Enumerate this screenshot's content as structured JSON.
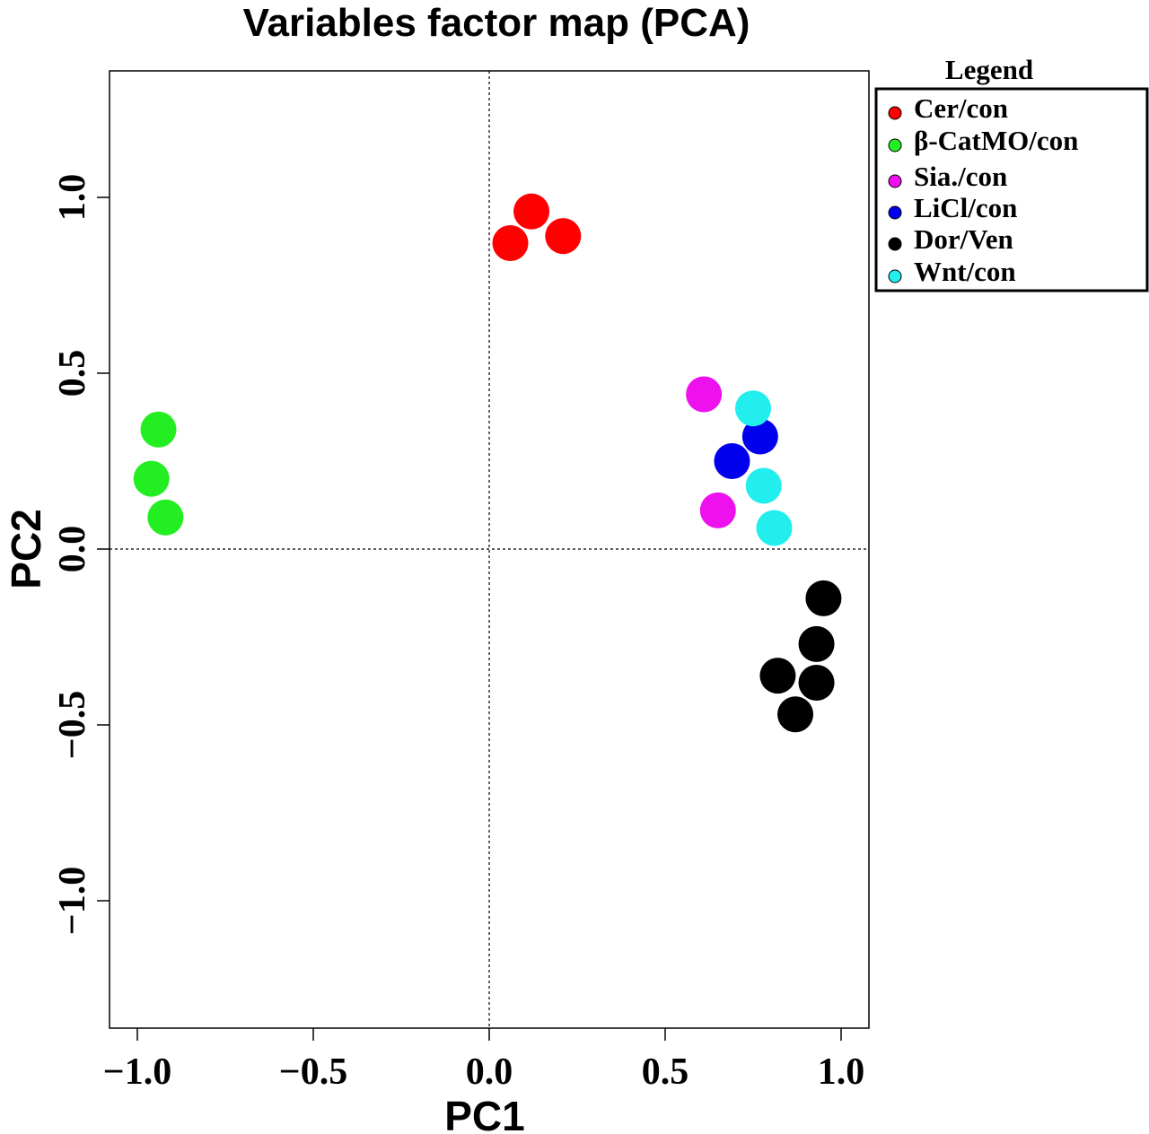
{
  "chart_data": {
    "type": "scatter",
    "title": "Variables factor map (PCA)",
    "xlabel": "PC1",
    "ylabel": "PC2",
    "xlim": [
      -1.08,
      1.08
    ],
    "ylim": [
      -1.36,
      1.36
    ],
    "xticks": [
      -1.0,
      -0.5,
      0.0,
      0.5,
      1.0
    ],
    "yticks": [
      -1.0,
      -0.5,
      0.0,
      0.5,
      1.0
    ],
    "xtick_labels": [
      "−1.0",
      "−0.5",
      "0.0",
      "0.5",
      "1.0"
    ],
    "ytick_labels": [
      "−1.0",
      "−0.5",
      "0.0",
      "0.5",
      "1.0"
    ],
    "reference_lines": {
      "x": 0,
      "y": 0,
      "style": "dotted"
    },
    "grid": false,
    "legend": {
      "title": "Legend",
      "placement": "outside-top-right"
    },
    "series": [
      {
        "name": "Cer/con",
        "color": "#ff0000",
        "points": [
          [
            0.06,
            0.87
          ],
          [
            0.12,
            0.96
          ],
          [
            0.21,
            0.89
          ]
        ]
      },
      {
        "name": "β-CatMO/con",
        "color": "#22ee22",
        "points": [
          [
            -0.94,
            0.34
          ],
          [
            -0.96,
            0.2
          ],
          [
            -0.92,
            0.09
          ]
        ]
      },
      {
        "name": "Sia./con",
        "color": "#ee11ee",
        "points": [
          [
            0.61,
            0.44
          ],
          [
            0.65,
            0.11
          ]
        ]
      },
      {
        "name": "LiCl/con",
        "color": "#0000ee",
        "points": [
          [
            0.77,
            0.32
          ],
          [
            0.69,
            0.25
          ]
        ]
      },
      {
        "name": "Dor/Ven",
        "color": "#000000",
        "points": [
          [
            0.95,
            -0.14
          ],
          [
            0.93,
            -0.27
          ],
          [
            0.93,
            -0.38
          ],
          [
            0.82,
            -0.36
          ],
          [
            0.87,
            -0.47
          ]
        ]
      },
      {
        "name": "Wnt/con",
        "color": "#22eeee",
        "points": [
          [
            0.75,
            0.4
          ],
          [
            0.78,
            0.18
          ],
          [
            0.81,
            0.06
          ]
        ]
      }
    ]
  }
}
